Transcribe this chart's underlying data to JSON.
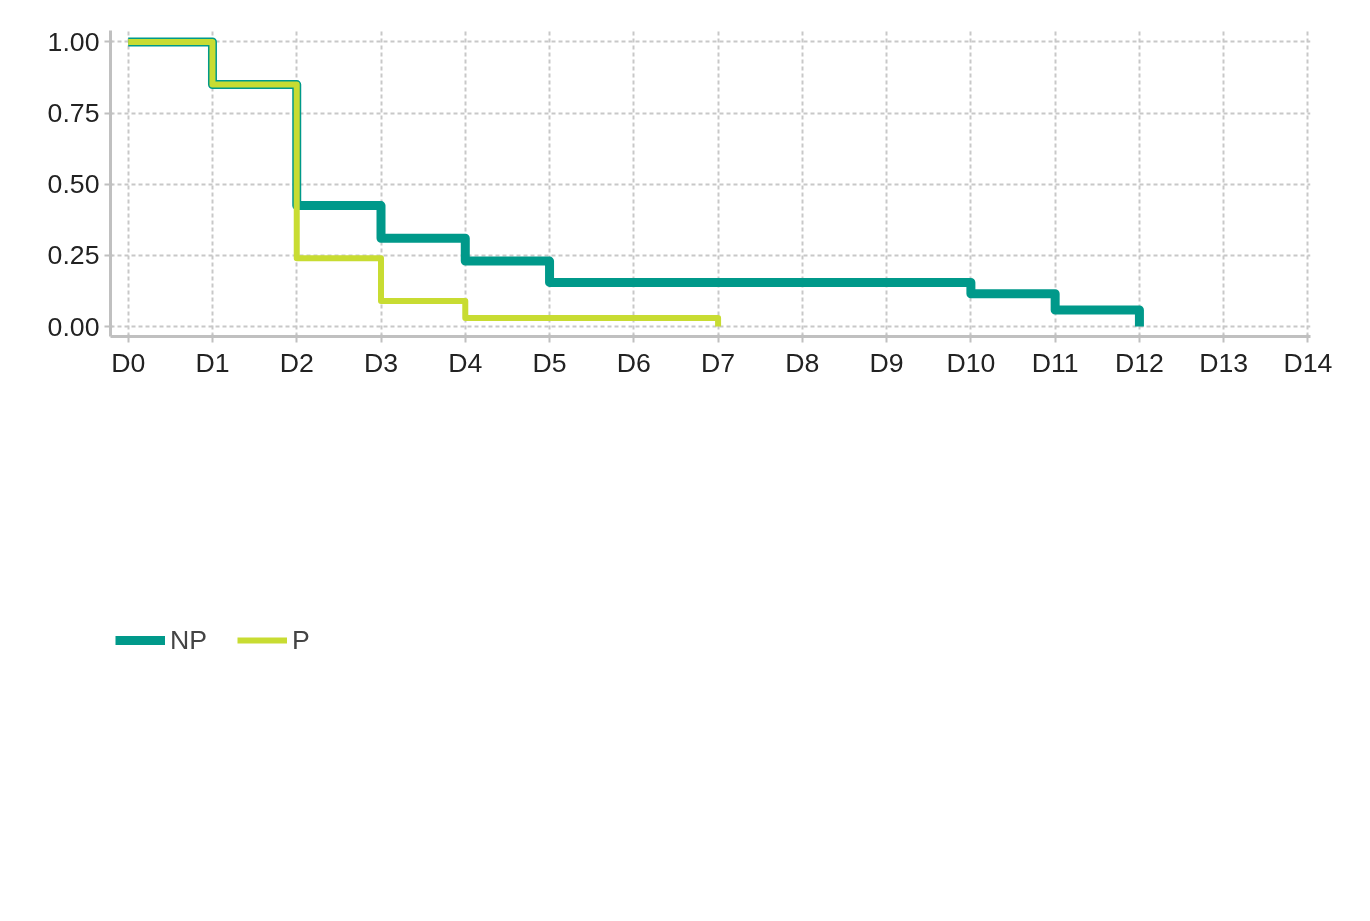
{
  "chart_data": {
    "type": "step",
    "categories": [
      "D0",
      "D1",
      "D2",
      "D3",
      "D4",
      "D5",
      "D6",
      "D7",
      "D8",
      "D9",
      "D10",
      "D11",
      "D12",
      "D13",
      "D14"
    ],
    "series": [
      {
        "name": "NP",
        "color": "#00998a",
        "values": [
          1,
          0.85,
          0.425,
          0.31,
          0.23,
          0.155,
          0.155,
          0.155,
          0.155,
          0.155,
          0.115,
          0.058,
          0,
          null,
          null
        ]
      },
      {
        "name": "P",
        "color": "#c8dc32",
        "values": [
          1,
          0.85,
          0.24,
          0.09,
          0.03,
          0.03,
          0.03,
          0,
          null,
          null,
          null,
          null,
          null,
          null,
          null
        ]
      }
    ],
    "ylim": [
      -0.035,
      1.04
    ],
    "yticks": [
      {
        "value": 0,
        "label": "0.00"
      },
      {
        "value": 0.25,
        "label": "0.25"
      },
      {
        "value": 0.5,
        "label": "0.50"
      },
      {
        "value": 0.75,
        "label": "0.75"
      },
      {
        "value": 1,
        "label": "1.00"
      }
    ],
    "grid": true,
    "legend": "bottom left",
    "line_style": "solid",
    "marker": "none"
  }
}
